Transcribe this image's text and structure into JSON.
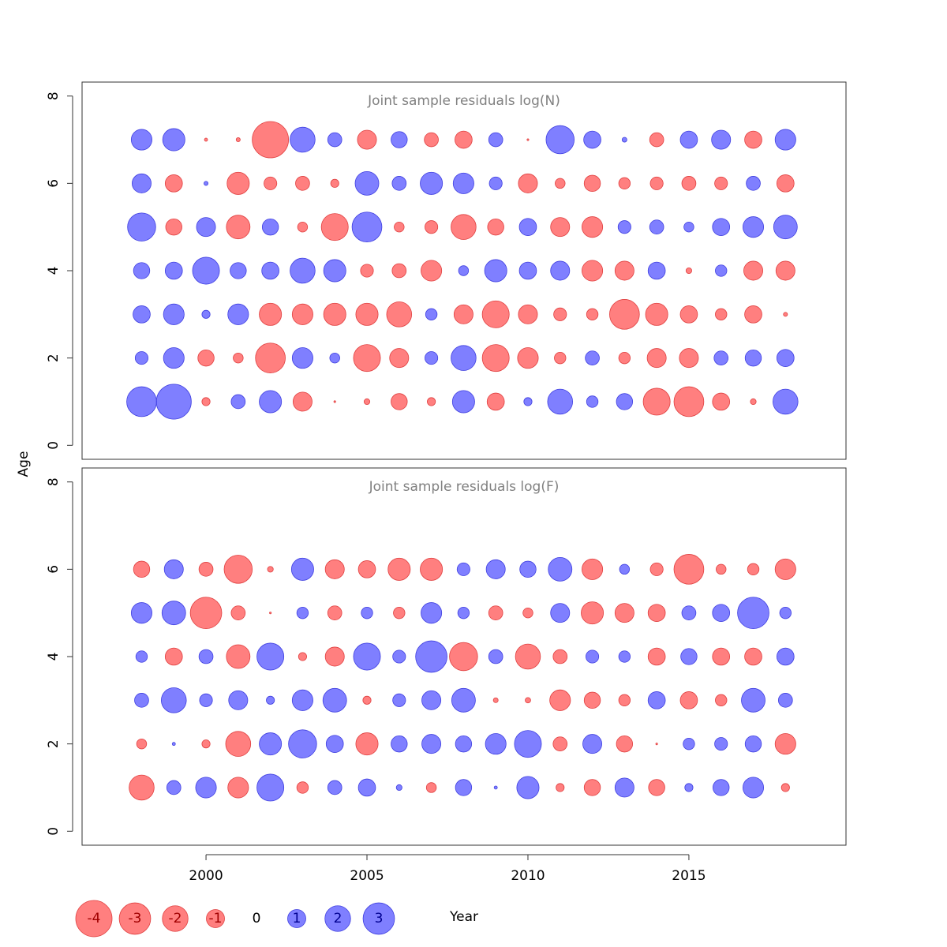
{
  "y_label": "Age",
  "x_label": "Year",
  "colors": {
    "negative": "#ff000080",
    "positive": "#0000ff80",
    "negative_stroke": "#e04040",
    "positive_stroke": "#4040e0",
    "negative_text": "#a00000",
    "positive_text": "#000090"
  },
  "legend": {
    "values": [
      -4,
      -3,
      -2,
      -1,
      0,
      1,
      2,
      3
    ]
  },
  "chart_data": [
    {
      "type": "bubble",
      "title": "Joint sample residuals log(N)",
      "x": [
        1998,
        1999,
        2000,
        2001,
        2002,
        2003,
        2004,
        2005,
        2006,
        2007,
        2008,
        2009,
        2010,
        2011,
        2012,
        2013,
        2014,
        2015,
        2016,
        2017,
        2018
      ],
      "y": [
        1,
        2,
        3,
        4,
        5,
        6,
        7
      ],
      "values": [
        [
          2.7,
          3.7,
          -0.2,
          0.6,
          1.5,
          -1.1,
          -0.01,
          -0.1,
          -0.8,
          -0.2,
          1.5,
          -0.9,
          0.2,
          1.9,
          0.4,
          0.8,
          -2.2,
          -2.7,
          -0.9,
          -0.1,
          1.9
        ],
        [
          0.5,
          1.3,
          -0.8,
          -0.3,
          -2.7,
          1.3,
          0.3,
          -2.2,
          -1.1,
          0.5,
          1.9,
          -2.2,
          -1.3,
          -0.4,
          0.6,
          -0.4,
          -1.1,
          -1.1,
          0.6,
          0.8,
          0.9
        ],
        [
          0.9,
          1.3,
          0.2,
          1.3,
          -1.5,
          -1.3,
          -1.5,
          -1.5,
          -1.9,
          0.4,
          -1.1,
          -2.2,
          -1.1,
          -0.5,
          -0.4,
          -2.7,
          -1.5,
          -0.9,
          -0.4,
          -0.9,
          -0.05
        ],
        [
          0.8,
          0.9,
          2.2,
          0.8,
          0.9,
          1.9,
          1.5,
          -0.5,
          -0.6,
          -1.3,
          0.3,
          1.5,
          0.9,
          1.1,
          -1.3,
          -1.1,
          0.9,
          -0.1,
          0.4,
          -1.1,
          -1.1
        ],
        [
          2.4,
          -0.8,
          1.1,
          -1.7,
          0.8,
          -0.3,
          -2.2,
          2.7,
          -0.3,
          -0.5,
          -1.9,
          -0.8,
          0.9,
          -1.1,
          -1.3,
          0.5,
          0.6,
          0.3,
          0.9,
          1.3,
          1.7
        ],
        [
          1.1,
          -0.9,
          0.05,
          -1.5,
          -0.5,
          -0.6,
          -0.2,
          1.7,
          0.6,
          1.5,
          1.3,
          0.5,
          -1.1,
          -0.3,
          -0.8,
          -0.4,
          -0.5,
          -0.6,
          -0.5,
          0.6,
          -0.9
        ],
        [
          1.3,
          1.5,
          -0.03,
          -0.05,
          -4,
          1.9,
          0.6,
          -1.1,
          0.8,
          -0.6,
          -0.9,
          0.6,
          -0.01,
          2.4,
          0.9,
          0.07,
          -0.6,
          0.9,
          1.1,
          -0.9,
          1.3
        ]
      ],
      "xlim": [
        1996.15,
        2019.88
      ],
      "ylim": [
        -0.32,
        8.32
      ],
      "yticks": [
        0,
        2,
        4,
        6,
        8
      ]
    },
    {
      "type": "bubble",
      "title": "Joint sample residuals log(F)",
      "x": [
        1998,
        1999,
        2000,
        2001,
        2002,
        2003,
        2004,
        2005,
        2006,
        2007,
        2008,
        2009,
        2010,
        2011,
        2012,
        2013,
        2014,
        2015,
        2016,
        2017,
        2018
      ],
      "y": [
        1,
        2,
        3,
        4,
        5,
        6
      ],
      "values": [
        [
          -1.9,
          0.6,
          1.3,
          -1.3,
          2.2,
          -0.4,
          0.6,
          0.9,
          0.1,
          -0.3,
          0.8,
          0.03,
          1.5,
          -0.2,
          -0.8,
          1.1,
          -0.8,
          0.2,
          0.8,
          1.3,
          -0.2
        ],
        [
          -0.3,
          0.03,
          -0.2,
          -1.9,
          1.5,
          2.4,
          0.9,
          -1.5,
          0.8,
          1.1,
          0.8,
          1.3,
          2.2,
          -0.6,
          1.1,
          -0.8,
          -0.01,
          0.4,
          0.5,
          0.8,
          -1.3
        ],
        [
          0.6,
          1.9,
          0.5,
          1.1,
          0.2,
          1.3,
          1.7,
          -0.2,
          0.5,
          1.1,
          1.7,
          -0.07,
          -0.09,
          -1.3,
          -0.8,
          -0.4,
          0.9,
          -0.9,
          -0.4,
          1.7,
          0.6
        ],
        [
          0.4,
          -0.9,
          0.6,
          -1.7,
          2.2,
          -0.2,
          -1.1,
          2.2,
          0.5,
          3.0,
          -2.4,
          0.6,
          -1.9,
          -0.6,
          0.5,
          0.4,
          -0.9,
          0.8,
          -0.9,
          -0.9,
          0.9
        ],
        [
          1.3,
          1.7,
          -3.0,
          -0.6,
          -0.01,
          0.4,
          -0.6,
          0.4,
          -0.4,
          1.3,
          0.4,
          -0.6,
          -0.3,
          1.1,
          -1.5,
          -1.1,
          -0.9,
          0.6,
          0.9,
          3.0,
          0.4
        ],
        [
          -0.8,
          1.1,
          -0.6,
          -2.4,
          -0.1,
          1.5,
          -1.1,
          -0.9,
          -1.5,
          -1.5,
          0.5,
          1.1,
          0.8,
          1.7,
          -1.3,
          0.3,
          -0.5,
          -2.7,
          -0.3,
          -0.4,
          -1.3
        ]
      ],
      "xlim": [
        1996.15,
        2019.88
      ],
      "ylim": [
        -0.32,
        8.32
      ],
      "yticks": [
        0,
        2,
        4,
        6,
        8
      ],
      "xticks": [
        2000,
        2005,
        2010,
        2015
      ]
    }
  ]
}
